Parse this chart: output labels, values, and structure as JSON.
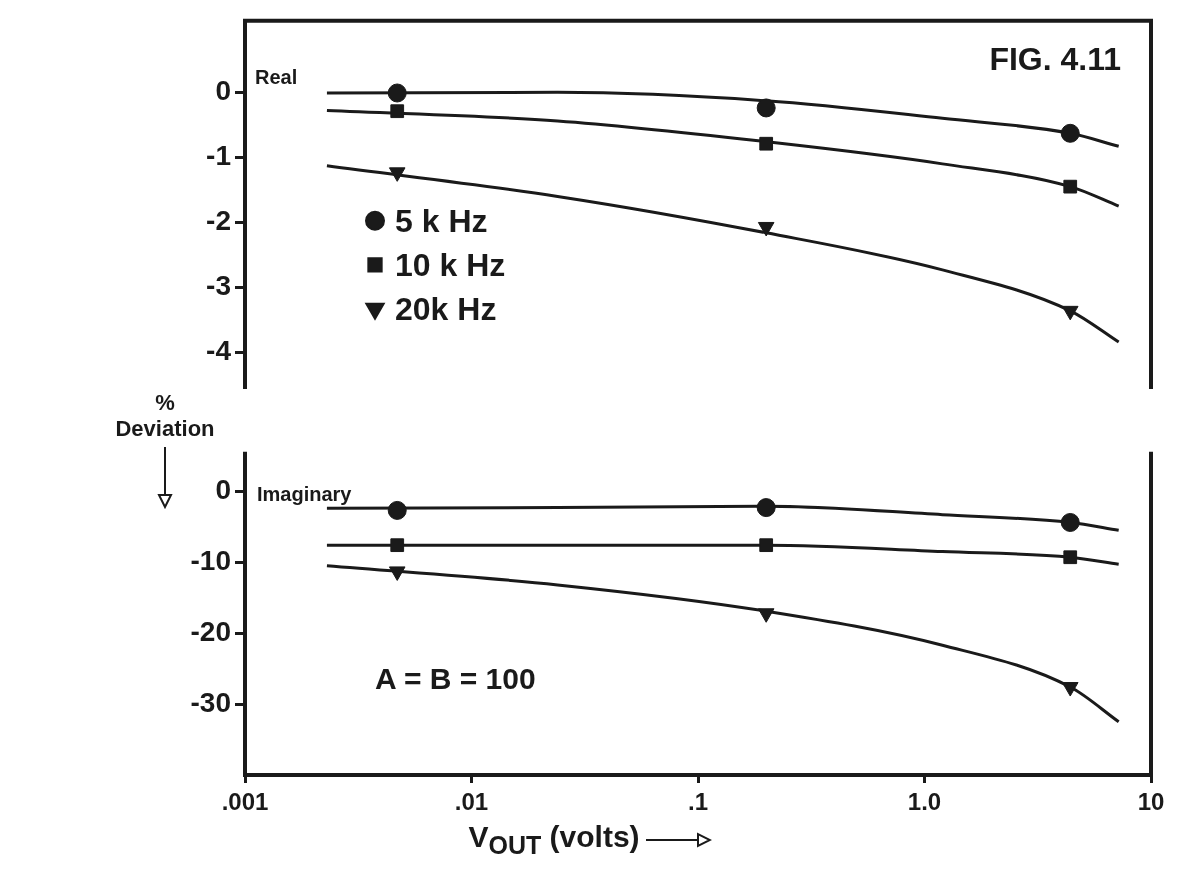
{
  "chart_data": [
    {
      "type": "scatter",
      "ylabel": "% Deviation",
      "annotations": [
        "Real",
        "FIG. 4.11"
      ],
      "xlim": [
        0.001,
        10
      ],
      "log": "x",
      "ylim": [
        -4.5,
        1.1
      ],
      "yticks": [
        0,
        -1,
        -2,
        -3,
        -4
      ],
      "tick_labels": "y",
      "grid": false,
      "legend": "left",
      "series": [
        {
          "name": "5 k Hz",
          "type": "scatter",
          "marker": "circle",
          "color": "#1a1a1a",
          "x": [
            0.0047,
            0.2,
            4.4
          ],
          "values": [
            -0.01,
            -0.24,
            -0.63
          ]
        },
        {
          "name": "10 k Hz",
          "type": "scatter",
          "marker": "square",
          "color": "#1a1a1a",
          "x": [
            0.0047,
            0.2,
            4.4
          ],
          "values": [
            -0.29,
            -0.79,
            -1.45
          ]
        },
        {
          "name": "20k Hz",
          "type": "scatter",
          "marker": "triangle",
          "color": "#1a1a1a",
          "x": [
            0.0047,
            0.2,
            4.4
          ],
          "values": [
            -1.23,
            -2.07,
            -3.36
          ]
        },
        {
          "type": "line",
          "marker": "none",
          "color": "#1a1a1a",
          "x": [
            0.0023,
            0.024,
            0.2,
            1.2,
            4.4,
            7.2
          ],
          "values": [
            -0.01,
            0.0,
            -0.13,
            -0.4,
            -0.63,
            -0.83
          ]
        },
        {
          "type": "line",
          "marker": "none",
          "color": "#1a1a1a",
          "x": [
            0.0023,
            0.024,
            0.2,
            1.2,
            4.4,
            7.2
          ],
          "values": [
            -0.28,
            -0.44,
            -0.76,
            -1.1,
            -1.45,
            -1.75
          ]
        },
        {
          "type": "line",
          "marker": "none",
          "color": "#1a1a1a",
          "x": [
            0.0023,
            0.024,
            0.2,
            1.2,
            4.4,
            7.2
          ],
          "values": [
            -1.13,
            -1.6,
            -2.16,
            -2.73,
            -3.36,
            -3.84
          ]
        }
      ]
    },
    {
      "type": "scatter",
      "xlabel": "V$_{OUT}$ (volts)",
      "annotations": [
        "Imaginary",
        "A = B = 100"
      ],
      "xlim": [
        0.001,
        10
      ],
      "log": "x",
      "xticks": [
        {
          "value": 0.001,
          "label": ".001"
        },
        {
          "value": 0.01,
          "label": ".01"
        },
        {
          "value": 0.1,
          "label": ".1"
        },
        {
          "value": 1,
          "label": "1.0"
        },
        10
      ],
      "ylim": [
        -40,
        5
      ],
      "yticks": [
        0,
        -10,
        -20,
        -30
      ],
      "grid": false,
      "series": [
        {
          "type": "scatter",
          "marker": "circle",
          "color": "#1a1a1a",
          "x": [
            0.0047,
            0.2,
            4.4
          ],
          "values": [
            -2.7,
            -2.3,
            -4.4
          ]
        },
        {
          "type": "scatter",
          "marker": "square",
          "color": "#1a1a1a",
          "x": [
            0.0047,
            0.2,
            4.4
          ],
          "values": [
            -7.6,
            -7.6,
            -9.3
          ]
        },
        {
          "type": "scatter",
          "marker": "triangle",
          "color": "#1a1a1a",
          "x": [
            0.0047,
            0.2,
            4.4
          ],
          "values": [
            -11.3,
            -17.2,
            -27.6
          ]
        },
        {
          "type": "line",
          "marker": "none",
          "color": "#1a1a1a",
          "x": [
            0.0023,
            0.024,
            0.2,
            1.2,
            4.4,
            7.2
          ],
          "values": [
            -2.4,
            -2.3,
            -2.1,
            -3.3,
            -4.4,
            -5.5
          ]
        },
        {
          "type": "line",
          "marker": "none",
          "color": "#1a1a1a",
          "x": [
            0.0023,
            0.024,
            0.2,
            1.2,
            4.4,
            7.2
          ],
          "values": [
            -7.6,
            -7.6,
            -7.6,
            -8.5,
            -9.3,
            -10.3
          ]
        },
        {
          "type": "line",
          "marker": "none",
          "color": "#1a1a1a",
          "x": [
            0.0023,
            0.024,
            0.2,
            1.2,
            4.4,
            7.2
          ],
          "values": [
            -10.5,
            -13.2,
            -16.9,
            -21.7,
            -27.6,
            -32.5
          ]
        }
      ]
    }
  ]
}
